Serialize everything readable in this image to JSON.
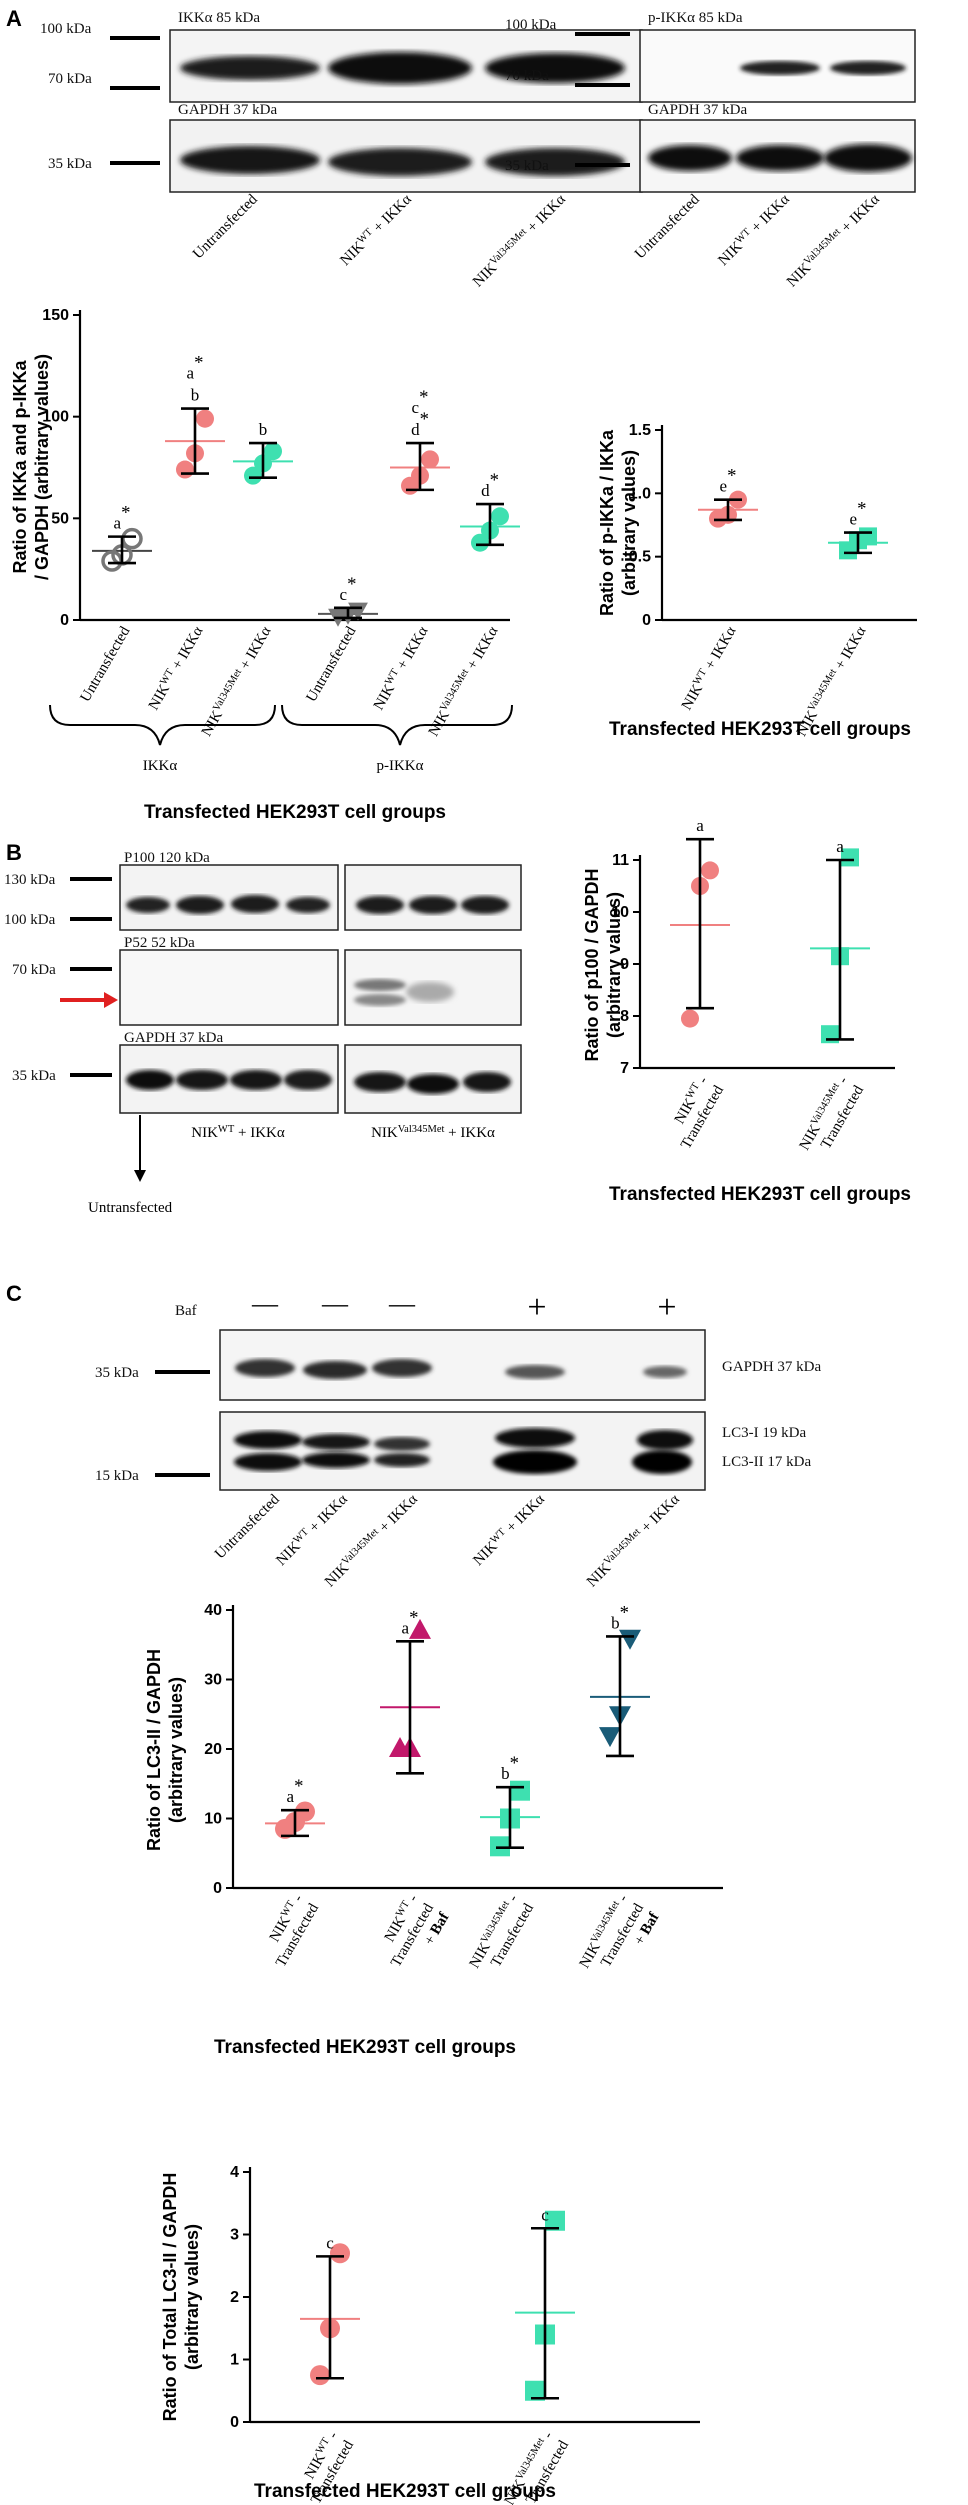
{
  "panels": {
    "A": {
      "letter": "A",
      "blot_left": {
        "top_label": "IKKα 85 kDa",
        "bottom_label": "GAPDH 37 kDa",
        "markers": [
          "100 kDa",
          "70 kDa",
          "35 kDa"
        ],
        "lanes": [
          "Untransfected",
          "NIK^WT + IKKα",
          "NIK^Val345Met + IKKα"
        ]
      },
      "blot_right": {
        "top_label": "p-IKKα 85 kDa",
        "bottom_label": "GAPDH 37 kDa",
        "markers": [
          "100 kDa",
          "70 kDa",
          "35 kDa"
        ],
        "lanes": [
          "Untransfected",
          "NIK^WT + IKKα",
          "NIK^Val345Met + IKKα"
        ]
      },
      "brace_labels": [
        "IKKα",
        "p-IKKα"
      ],
      "x_title_left": "Transfected HEK293T cell groups",
      "x_title_right": "Transfected HEK293T cell groups"
    },
    "B": {
      "letter": "B",
      "blot": {
        "labels": [
          "P100 120 kDa",
          "P52 52 kDa",
          "GAPDH 37 kDa"
        ],
        "markers": [
          "130 kDa",
          "100 kDa",
          "70 kDa",
          "35 kDa"
        ],
        "group_wt": "NIK^WT + IKKα",
        "group_mut": "NIK^Val345Met + IKKα",
        "untransfected": "Untransfected"
      },
      "x_title": "Transfected HEK293T cell groups"
    },
    "C": {
      "letter": "C",
      "blot": {
        "baf_label": "Baf",
        "baf_marks": [
          "—",
          "—",
          "—",
          "+",
          "+"
        ],
        "labels_right": [
          "GAPDH 37 kDa",
          "LC3-I 19 kDa",
          "LC3-II 17 kDa"
        ],
        "markers": [
          "35 kDa",
          "15 kDa"
        ],
        "lanes": [
          "Untransfected",
          "NIK^WT + IKKα",
          "NIK^Val345Met + IKKα",
          "NIK^WT + IKKα",
          "NIK^Val345Met + IKKα"
        ]
      },
      "x_title_1": "Transfected HEK293T cell groups",
      "x_title_2": "Transfected HEK293T cell groups"
    }
  },
  "chart_data": [
    {
      "id": "A1",
      "type": "scatter",
      "ylabel": "Ratio of IKKa and p-IKKa / GAPDH (arbitrary values)",
      "ylim": [
        0,
        150
      ],
      "yticks": [
        0,
        50,
        100,
        150
      ],
      "categories": [
        "Untransfected",
        "NIK^WT + IKKα",
        "NIK^Val345Met + IKKα",
        "Untransfected",
        "NIK^WT + IKKα",
        "NIK^Val345Met + IKKα"
      ],
      "groups": [
        {
          "points": [
            29,
            32,
            40
          ],
          "mean": 34,
          "err": [
            28,
            41
          ],
          "marker": "circle-hollow",
          "color": "#777777",
          "line": "#444444",
          "labels": [
            "a*"
          ]
        },
        {
          "points": [
            74,
            82,
            99
          ],
          "mean": 88,
          "err": [
            72,
            104
          ],
          "marker": "circle",
          "color": "#f08080",
          "line": "#f08080",
          "labels": [
            "a*",
            "b"
          ]
        },
        {
          "points": [
            71,
            77,
            83
          ],
          "mean": 78,
          "err": [
            70,
            87
          ],
          "marker": "circle",
          "color": "#3ee0b0",
          "line": "#3ee0b0",
          "labels": [
            "b"
          ]
        },
        {
          "points": [
            2,
            3,
            5
          ],
          "mean": 3,
          "err": [
            1,
            6
          ],
          "marker": "triangle-down",
          "color": "#777777",
          "line": "#555555",
          "labels": [
            "c*"
          ]
        },
        {
          "points": [
            66,
            71,
            79
          ],
          "mean": 75,
          "err": [
            64,
            87
          ],
          "marker": "circle",
          "color": "#f08080",
          "line": "#f08080",
          "labels": [
            "c*",
            "d*"
          ]
        },
        {
          "points": [
            38,
            44,
            51
          ],
          "mean": 46,
          "err": [
            37,
            57
          ],
          "marker": "circle",
          "color": "#3ee0b0",
          "line": "#3ee0b0",
          "labels": [
            "d*"
          ]
        }
      ]
    },
    {
      "id": "A2",
      "type": "scatter",
      "ylabel": "Ratio of p-IKKa / IKKa (arbitrary values)",
      "ylim": [
        0,
        1.5
      ],
      "yticks": [
        "0",
        "0.5",
        "1.0",
        "1.5"
      ],
      "categories": [
        "NIK^WT + IKKα",
        "NIK^Val345Met + IKKα"
      ],
      "groups": [
        {
          "points": [
            0.8,
            0.83,
            0.95
          ],
          "mean": 0.87,
          "err": [
            0.79,
            0.95
          ],
          "marker": "circle",
          "color": "#f08080",
          "line": "#f08080",
          "labels": [
            "e*"
          ]
        },
        {
          "points": [
            0.55,
            0.63,
            0.66
          ],
          "mean": 0.61,
          "err": [
            0.53,
            0.69
          ],
          "marker": "square",
          "color": "#3ee0b0",
          "line": "#3ee0b0",
          "labels": [
            "e*"
          ]
        }
      ]
    },
    {
      "id": "B1",
      "type": "scatter",
      "ylabel": "Ratio of p100 / GAPDH (arbitrary values)",
      "ylim": [
        7,
        11
      ],
      "yticks": [
        7,
        8,
        9,
        10,
        11
      ],
      "categories": [
        "NIK^WT - Transfected",
        "NIK^Val345Met - Transfected"
      ],
      "groups": [
        {
          "points": [
            7.95,
            10.5,
            10.8
          ],
          "mean": 9.75,
          "err": [
            8.15,
            11.4
          ],
          "marker": "circle",
          "color": "#f08080",
          "line": "#f08080",
          "labels": [
            "a"
          ]
        },
        {
          "points": [
            7.65,
            9.15,
            11.05
          ],
          "mean": 9.3,
          "err": [
            7.55,
            11.0
          ],
          "marker": "square",
          "color": "#3ee0b0",
          "line": "#3ee0b0",
          "labels": [
            "a"
          ]
        }
      ]
    },
    {
      "id": "C1",
      "type": "scatter",
      "ylabel": "Ratio of LC3-II / GAPDH (arbitrary values)",
      "ylim": [
        0,
        40
      ],
      "yticks": [
        0,
        10,
        20,
        30,
        40
      ],
      "categories": [
        "NIK^WT - Transfected",
        "NIK^WT - Transfected + Baf",
        "NIK^Val345Met - Transfected",
        "NIK^Val345Met - Transfected + Baf"
      ],
      "groups": [
        {
          "points": [
            8.5,
            9.5,
            11
          ],
          "mean": 9.3,
          "err": [
            7.5,
            11.2
          ],
          "marker": "circle",
          "color": "#f08080",
          "line": "#f08080",
          "labels": [
            "a*"
          ]
        },
        {
          "points": [
            20,
            20,
            37
          ],
          "mean": 26,
          "err": [
            16.5,
            35.5
          ],
          "marker": "triangle-up",
          "color": "#c2186b",
          "line": "#c2186b",
          "labels": [
            "a*"
          ]
        },
        {
          "points": [
            6,
            10,
            14
          ],
          "mean": 10.2,
          "err": [
            5.8,
            14.5
          ],
          "marker": "square",
          "color": "#3ee0b0",
          "line": "#3ee0b0",
          "labels": [
            "b*"
          ]
        },
        {
          "points": [
            22,
            25,
            36
          ],
          "mean": 27.5,
          "err": [
            19,
            36.2
          ],
          "marker": "triangle-down",
          "color": "#1a5c78",
          "line": "#1a5c78",
          "labels": [
            "b*"
          ]
        }
      ]
    },
    {
      "id": "C2",
      "type": "scatter",
      "ylabel": "Ratio of Total LC3-II / GAPDH (arbitrary values)",
      "ylim": [
        0,
        4
      ],
      "yticks": [
        0,
        1,
        2,
        3,
        4
      ],
      "categories": [
        "NIK^WT - Transfected",
        "NIK^Val345Met - Transfected"
      ],
      "groups": [
        {
          "points": [
            0.75,
            1.5,
            2.7
          ],
          "mean": 1.65,
          "err": [
            0.7,
            2.65
          ],
          "marker": "circle",
          "color": "#f08080",
          "line": "#f08080",
          "labels": [
            "c"
          ]
        },
        {
          "points": [
            0.5,
            1.4,
            3.22
          ],
          "mean": 1.75,
          "err": [
            0.38,
            3.1
          ],
          "marker": "square",
          "color": "#3ee0b0",
          "line": "#3ee0b0",
          "labels": [
            "c"
          ]
        }
      ]
    }
  ]
}
